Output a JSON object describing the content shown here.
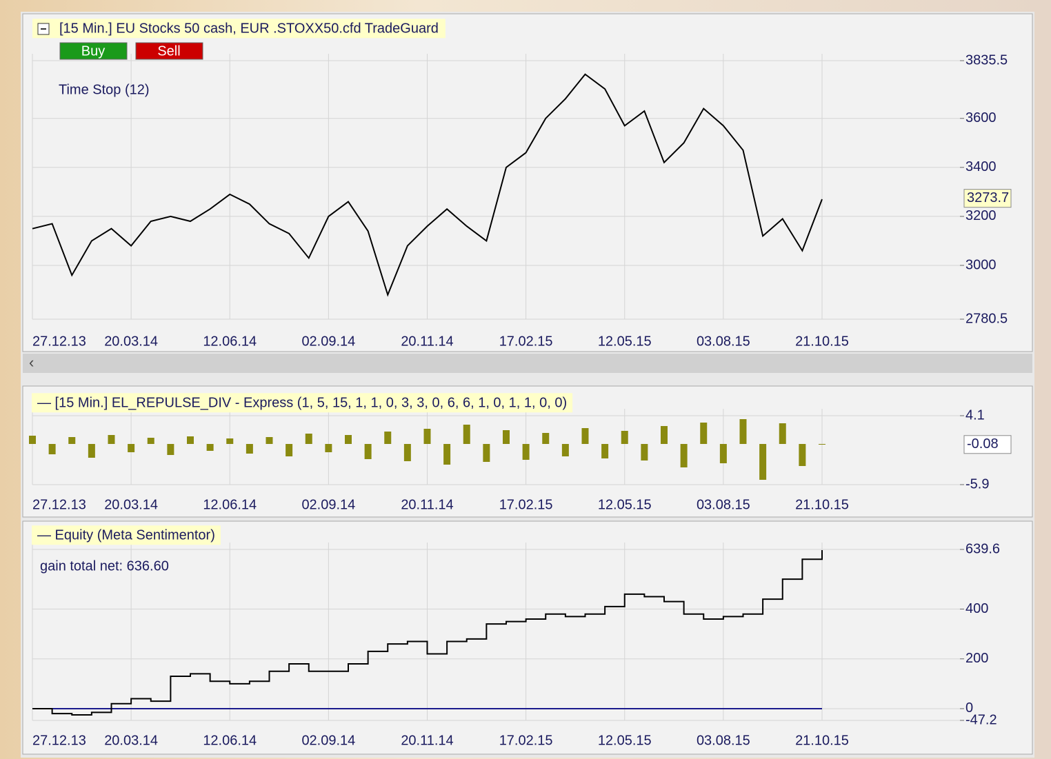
{
  "chart_data": [
    {
      "type": "line",
      "title": "[15 Min.] EU Stocks 50 cash, EUR   .STOXX50.cfd TradeGuard",
      "buttons": [
        "Buy",
        "Sell"
      ],
      "annotation": "Time Stop  (12)",
      "x": [
        0,
        1,
        2,
        3,
        4,
        5,
        6,
        7,
        8,
        9,
        10,
        11,
        12,
        13,
        14,
        15,
        16,
        17,
        18,
        19,
        20,
        21,
        22,
        23,
        24,
        25,
        26,
        27,
        28,
        29,
        30,
        31,
        32,
        33,
        34,
        35,
        36,
        37,
        38,
        39,
        40
      ],
      "values": [
        3150,
        3170,
        2960,
        3100,
        3150,
        3080,
        3180,
        3200,
        3180,
        3230,
        3290,
        3250,
        3170,
        3130,
        3030,
        3200,
        3260,
        3140,
        2880,
        3080,
        3160,
        3230,
        3160,
        3100,
        3400,
        3460,
        3600,
        3680,
        3780,
        3720,
        3570,
        3630,
        3420,
        3500,
        3640,
        3570,
        3470,
        3120,
        3190,
        3060,
        3270
      ],
      "color": "#000000",
      "last_value": 3273.7,
      "xlim": [
        0,
        40
      ],
      "xticks": [
        {
          "value": 0,
          "label": "27.12.13"
        },
        {
          "value": 5,
          "label": "20.03.14"
        },
        {
          "value": 10,
          "label": "12.06.14"
        },
        {
          "value": 15,
          "label": "02.09.14"
        },
        {
          "value": 20,
          "label": "20.11.14"
        },
        {
          "value": 25,
          "label": "17.02.15"
        },
        {
          "value": 30,
          "label": "12.05.15"
        },
        {
          "value": 35,
          "label": "03.08.15"
        },
        {
          "value": 40,
          "label": "21.10.15"
        }
      ],
      "ylim": [
        2780.5,
        3835.5
      ],
      "yticks": [
        2780.5,
        3000,
        3200,
        3400,
        3600,
        3835.5
      ],
      "grid": true
    },
    {
      "type": "bar",
      "title": "— [15 Min.] EL_REPULSE_DIV - Express  (1, 5, 15, 1, 1, 0, 3, 3, 0, 6, 6, 1, 0, 1, 1, 0, 0)",
      "x": [
        0,
        1,
        2,
        3,
        4,
        5,
        6,
        7,
        8,
        9,
        10,
        11,
        12,
        13,
        14,
        15,
        16,
        17,
        18,
        19,
        20,
        21,
        22,
        23,
        24,
        25,
        26,
        27,
        28,
        29,
        30,
        31,
        32,
        33,
        34,
        35,
        36,
        37,
        38,
        39,
        40
      ],
      "values": [
        1.2,
        -1.5,
        1.0,
        -2.0,
        1.3,
        -1.2,
        0.9,
        -1.6,
        1.1,
        -1.0,
        0.8,
        -1.4,
        1.0,
        -1.8,
        1.5,
        -1.2,
        1.3,
        -2.2,
        1.8,
        -2.5,
        2.2,
        -3.0,
        2.8,
        -2.6,
        2.0,
        -2.3,
        1.6,
        -1.8,
        2.3,
        -2.1,
        1.9,
        -2.4,
        2.6,
        -3.4,
        3.1,
        -2.8,
        3.6,
        -5.2,
        3.0,
        -3.2,
        -0.08
      ],
      "color": "#8a8a10",
      "last_value": -0.08,
      "xlim": [
        0,
        40
      ],
      "xticks": [
        {
          "value": 0,
          "label": "27.12.13"
        },
        {
          "value": 5,
          "label": "20.03.14"
        },
        {
          "value": 10,
          "label": "12.06.14"
        },
        {
          "value": 15,
          "label": "02.09.14"
        },
        {
          "value": 20,
          "label": "20.11.14"
        },
        {
          "value": 25,
          "label": "17.02.15"
        },
        {
          "value": 30,
          "label": "12.05.15"
        },
        {
          "value": 35,
          "label": "03.08.15"
        },
        {
          "value": 40,
          "label": "21.10.15"
        }
      ],
      "ylim": [
        -5.9,
        4.1
      ],
      "yticks": [
        -5.9,
        4.1
      ],
      "grid": true
    },
    {
      "type": "line",
      "step": true,
      "title": "— Equity (Meta Sentimentor)",
      "annotation": "gain total net: 636.60",
      "x": [
        0,
        1,
        2,
        3,
        4,
        5,
        6,
        7,
        8,
        9,
        10,
        11,
        12,
        13,
        14,
        15,
        16,
        17,
        18,
        19,
        20,
        21,
        22,
        23,
        24,
        25,
        26,
        27,
        28,
        29,
        30,
        31,
        32,
        33,
        34,
        35,
        36,
        37,
        38,
        39,
        40
      ],
      "values": [
        0,
        -20,
        -25,
        -15,
        20,
        40,
        30,
        130,
        140,
        110,
        100,
        110,
        150,
        180,
        150,
        150,
        180,
        230,
        260,
        270,
        220,
        270,
        280,
        340,
        350,
        360,
        380,
        370,
        380,
        410,
        460,
        450,
        430,
        380,
        360,
        370,
        380,
        440,
        520,
        600,
        637
      ],
      "color": "#000000",
      "baseline_color": "#1a1a8c",
      "xlim": [
        0,
        40
      ],
      "xticks": [
        {
          "value": 0,
          "label": "27.12.13"
        },
        {
          "value": 5,
          "label": "20.03.14"
        },
        {
          "value": 10,
          "label": "12.06.14"
        },
        {
          "value": 15,
          "label": "02.09.14"
        },
        {
          "value": 20,
          "label": "20.11.14"
        },
        {
          "value": 25,
          "label": "17.02.15"
        },
        {
          "value": 30,
          "label": "12.05.15"
        },
        {
          "value": 35,
          "label": "03.08.15"
        },
        {
          "value": 40,
          "label": "21.10.15"
        }
      ],
      "ylim": [
        -47.2,
        639.6
      ],
      "yticks": [
        -47.2,
        0,
        200,
        400,
        639.6
      ],
      "grid": true
    }
  ]
}
